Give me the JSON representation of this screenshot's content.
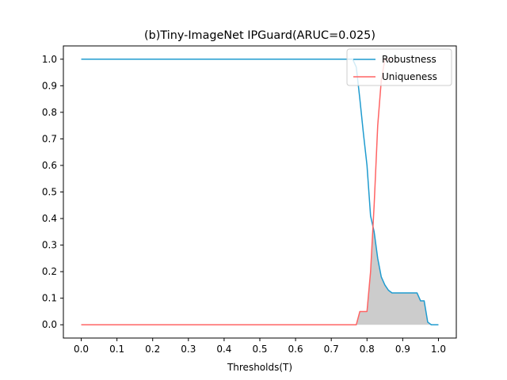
{
  "chart_data": {
    "type": "line",
    "title": "(b)Tiny-ImageNet IPGuard(ARUC=0.025)",
    "xlabel": "Thresholds(T)",
    "ylabel": "",
    "xlim": [
      -0.05,
      1.05
    ],
    "ylim": [
      -0.05,
      1.05
    ],
    "xticks": [
      "0.0",
      "0.1",
      "0.2",
      "0.3",
      "0.4",
      "0.5",
      "0.6",
      "0.7",
      "0.8",
      "0.9",
      "1.0"
    ],
    "yticks": [
      "0.0",
      "0.1",
      "0.2",
      "0.3",
      "0.4",
      "0.5",
      "0.6",
      "0.7",
      "0.8",
      "0.9",
      "1.0"
    ],
    "grid": false,
    "legend_position": "top-right",
    "fill_between": {
      "color": "#cccccc",
      "description": "area under min(Robustness, Uniqueness)"
    },
    "series": [
      {
        "name": "Robustness",
        "color": "#1f9bcf",
        "x": [
          0.0,
          0.76,
          0.77,
          0.78,
          0.79,
          0.8,
          0.81,
          0.82,
          0.83,
          0.84,
          0.85,
          0.86,
          0.87,
          0.88,
          0.89,
          0.9,
          0.91,
          0.92,
          0.93,
          0.94,
          0.95,
          0.96,
          0.97,
          0.98,
          0.99,
          1.0
        ],
        "y": [
          1.0,
          1.0,
          0.97,
          0.85,
          0.72,
          0.6,
          0.41,
          0.35,
          0.25,
          0.18,
          0.15,
          0.13,
          0.12,
          0.12,
          0.12,
          0.12,
          0.12,
          0.12,
          0.12,
          0.12,
          0.09,
          0.09,
          0.01,
          0.0,
          0.0,
          0.0
        ]
      },
      {
        "name": "Uniqueness",
        "color": "#ff6464",
        "x": [
          0.0,
          0.77,
          0.78,
          0.79,
          0.8,
          0.81,
          0.82,
          0.83,
          0.84,
          0.85,
          0.86,
          0.87
        ],
        "y": [
          0.0,
          0.0,
          0.05,
          0.05,
          0.05,
          0.2,
          0.45,
          0.75,
          0.92,
          1.0,
          1.0,
          1.0
        ]
      }
    ]
  }
}
